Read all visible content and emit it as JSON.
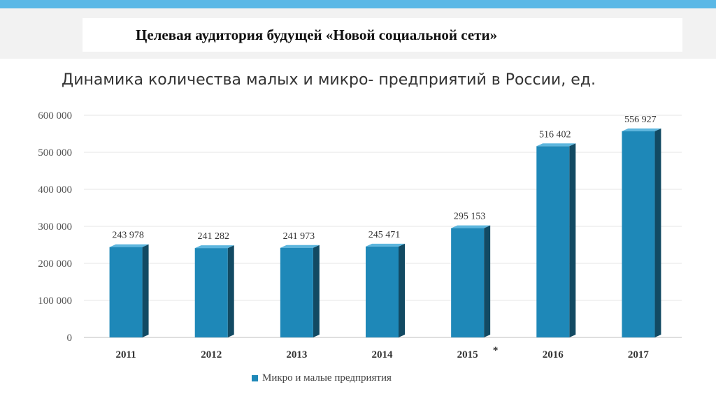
{
  "slide": {
    "title": "Целевая аудитория будущей «Новой социальной сети»"
  },
  "colors": {
    "top_bar": "#5ab8e6",
    "bar_front": "#1e88b8",
    "bar_side": "#124a63",
    "bar_top": "#5db6de"
  },
  "chart_data": {
    "type": "bar",
    "title": "Динамика количества малых и микро- предприятий в России, ед.",
    "categories": [
      "2011",
      "2012",
      "2013",
      "2014",
      "2015",
      "2016",
      "2017"
    ],
    "series": [
      {
        "name": "Микро и малые предприятия",
        "values": [
          243978,
          241282,
          241973,
          245471,
          295153,
          516402,
          556927
        ],
        "labels": [
          "243 978",
          "241 282",
          "241 973",
          "245 471",
          "295 153",
          "516 402",
          "556 927"
        ]
      }
    ],
    "ylim": [
      0,
      600000
    ],
    "yticks": [
      0,
      100000,
      200000,
      300000,
      400000,
      500000,
      600000
    ],
    "ytick_labels": [
      "0",
      "100 000",
      "200 000",
      "300 000",
      "400 000",
      "500 000",
      "600 000"
    ],
    "annotations": [
      {
        "category": "2015",
        "text": "*"
      }
    ],
    "grid": true,
    "legend_position": "bottom"
  }
}
